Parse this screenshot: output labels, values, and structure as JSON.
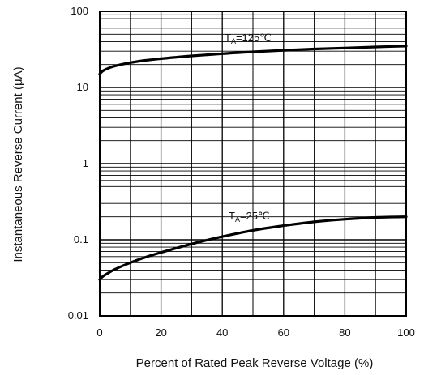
{
  "chart_data": {
    "type": "line",
    "xlabel": "Percent of Rated Peak Reverse Voltage (%)",
    "ylabel": "Instantaneous Reverse Current (μA)",
    "xlim": [
      0,
      100
    ],
    "ylim": [
      0.01,
      100
    ],
    "y_scale": "log",
    "grid": true,
    "x_ticks": [
      0,
      20,
      40,
      60,
      80,
      100
    ],
    "x_tick_labels": [
      "0",
      "20",
      "40",
      "60",
      "80",
      "100"
    ],
    "y_ticks": [
      0.01,
      0.1,
      1,
      10,
      100
    ],
    "y_tick_labels": [
      "0.01",
      "0.1",
      "1",
      "10",
      "100"
    ],
    "series": [
      {
        "label_main": "T",
        "label_sub": "A",
        "label_rest": "=125℃",
        "x": [
          0,
          1,
          3,
          5,
          10,
          15,
          20,
          30,
          40,
          50,
          60,
          70,
          80,
          90,
          100
        ],
        "y": [
          15,
          16.5,
          18,
          19.2,
          21.2,
          22.7,
          23.9,
          26,
          27.8,
          29.4,
          30.8,
          32,
          33,
          34,
          35
        ]
      },
      {
        "label_main": "T",
        "label_sub": "A",
        "label_rest": "=25℃",
        "x": [
          0,
          1,
          3,
          5,
          10,
          15,
          20,
          30,
          40,
          50,
          60,
          70,
          80,
          90,
          100
        ],
        "y": [
          0.03,
          0.033,
          0.037,
          0.041,
          0.05,
          0.059,
          0.068,
          0.088,
          0.11,
          0.133,
          0.153,
          0.172,
          0.186,
          0.196,
          0.2
        ]
      }
    ]
  }
}
